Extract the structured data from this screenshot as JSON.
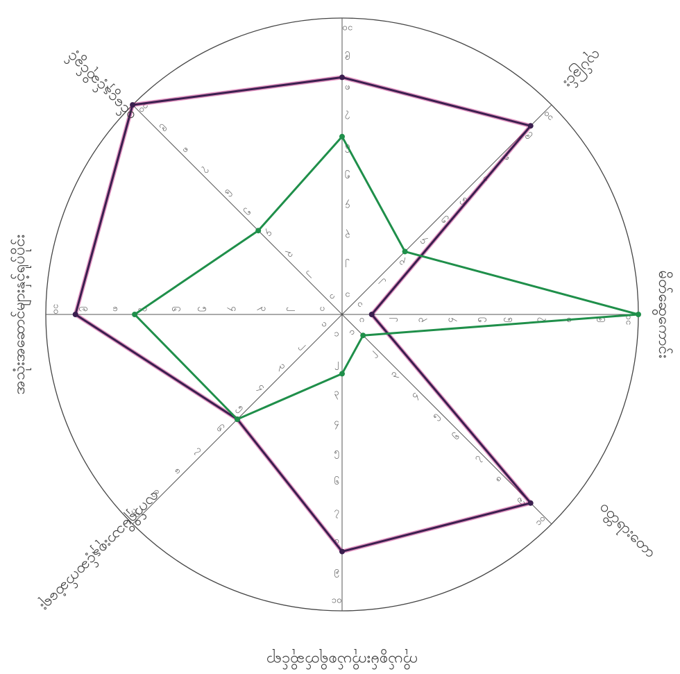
{
  "chart_data": {
    "type": "radar",
    "scale": {
      "min": 0,
      "max": 10,
      "step": 1
    },
    "axis_labels": [
      "",
      "လုပ်ခြင်း",
      "မိတ်ဆွေကောင်း",
      "ဝတ္တရားတော",
      "ကိုယ်စွမ်းကိုယ်စရိတ်ဆိုင်ရာ",
      "လက်ရှိမိသားစုနှင့်ဆက်ဆံရေး",
      "အသုံးအဆောင်များနှင့်ရုပ်ပိုင်း",
      "ဝင်ငွေနှင့်ဆိုင်ခွင့်"
    ],
    "tick_labels": [
      "၁",
      "၂",
      "၃",
      "၄",
      "၅",
      "၆",
      "၇",
      "၈",
      "၉",
      "၁၀"
    ],
    "series": [
      {
        "color": "#3b1f4f",
        "highlight": "#c2187a",
        "values": [
          8,
          9,
          1,
          9,
          8,
          5,
          9,
          10
        ]
      },
      {
        "color": "#1f8f4a",
        "values": [
          6,
          3,
          10,
          1,
          2,
          5,
          7,
          4
        ]
      }
    ]
  }
}
